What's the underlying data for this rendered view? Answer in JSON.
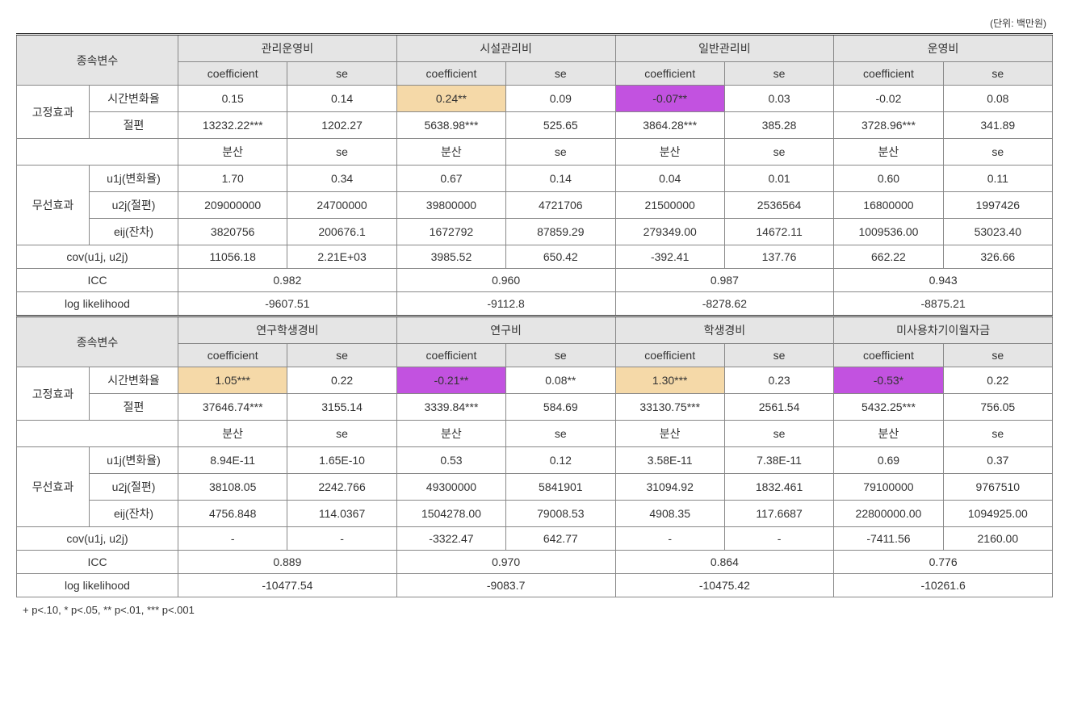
{
  "unit_label": "(단위: 백만원)",
  "footnote": "+ p<.10, * p<.05, ** p<.01, *** p<.001",
  "labels": {
    "dep_var": "종속변수",
    "coef": "coefficient",
    "se": "se",
    "variance": "분산",
    "fixed_effect": "고정효과",
    "random_effect": "무선효과",
    "time_rate": "시간변화율",
    "intercept": "절편",
    "u1j": "u1j(변화율)",
    "u2j": "u2j(절편)",
    "eij": "eij(잔차)",
    "cov": "cov(u1j, u2j)",
    "icc": "ICC",
    "loglik": "log likelihood"
  },
  "highlight_colors": {
    "peach": "#f5d9a8",
    "purple": "#c252e0"
  },
  "block1": {
    "cols": [
      "관리운영비",
      "시설관리비",
      "일반관리비",
      "운영비"
    ],
    "time_rate": [
      {
        "coef": "0.15",
        "se": "0.14"
      },
      {
        "coef": "0.24**",
        "se": "0.09",
        "coef_hl": "peach"
      },
      {
        "coef": "-0.07**",
        "se": "0.03",
        "coef_hl": "purple"
      },
      {
        "coef": "-0.02",
        "se": "0.08"
      }
    ],
    "intercept": [
      {
        "coef": "13232.22***",
        "se": "1202.27"
      },
      {
        "coef": "5638.98***",
        "se": "525.65"
      },
      {
        "coef": "3864.28***",
        "se": "385.28"
      },
      {
        "coef": "3728.96***",
        "se": "341.89"
      }
    ],
    "u1j": [
      {
        "var": "1.70",
        "se": "0.34"
      },
      {
        "var": "0.67",
        "se": "0.14"
      },
      {
        "var": "0.04",
        "se": "0.01"
      },
      {
        "var": "0.60",
        "se": "0.11"
      }
    ],
    "u2j": [
      {
        "var": "209000000",
        "se": "24700000"
      },
      {
        "var": "39800000",
        "se": "4721706"
      },
      {
        "var": "21500000",
        "se": "2536564"
      },
      {
        "var": "16800000",
        "se": "1997426"
      }
    ],
    "eij": [
      {
        "var": "3820756",
        "se": "200676.1"
      },
      {
        "var": "1672792",
        "se": "87859.29"
      },
      {
        "var": "279349.00",
        "se": "14672.11"
      },
      {
        "var": "1009536.00",
        "se": "53023.40"
      }
    ],
    "cov": [
      {
        "v1": "11056.18",
        "v2": "2.21E+03"
      },
      {
        "v1": "3985.52",
        "v2": "650.42"
      },
      {
        "v1": "-392.41",
        "v2": "137.76"
      },
      {
        "v1": "662.22",
        "v2": "326.66"
      }
    ],
    "icc": [
      "0.982",
      "0.960",
      "0.987",
      "0.943"
    ],
    "loglik": [
      "-9607.51",
      "-9112.8",
      "-8278.62",
      "-8875.21"
    ]
  },
  "block2": {
    "cols": [
      "연구학생경비",
      "연구비",
      "학생경비",
      "미사용차기이월자금"
    ],
    "time_rate": [
      {
        "coef": "1.05***",
        "se": "0.22",
        "coef_hl": "peach"
      },
      {
        "coef": "-0.21**",
        "se": "0.08**",
        "coef_hl": "purple"
      },
      {
        "coef": "1.30***",
        "se": "0.23",
        "coef_hl": "peach"
      },
      {
        "coef": "-0.53*",
        "se": "0.22",
        "coef_hl": "purple"
      }
    ],
    "intercept": [
      {
        "coef": "37646.74***",
        "se": "3155.14"
      },
      {
        "coef": "3339.84***",
        "se": "584.69"
      },
      {
        "coef": "33130.75***",
        "se": "2561.54"
      },
      {
        "coef": "5432.25***",
        "se": "756.05"
      }
    ],
    "u1j": [
      {
        "var": "8.94E-11",
        "se": "1.65E-10"
      },
      {
        "var": "0.53",
        "se": "0.12"
      },
      {
        "var": "3.58E-11",
        "se": "7.38E-11"
      },
      {
        "var": "0.69",
        "se": "0.37"
      }
    ],
    "u2j": [
      {
        "var": "38108.05",
        "se": "2242.766"
      },
      {
        "var": "49300000",
        "se": "5841901"
      },
      {
        "var": "31094.92",
        "se": "1832.461"
      },
      {
        "var": "79100000",
        "se": "9767510"
      }
    ],
    "eij": [
      {
        "var": "4756.848",
        "se": "114.0367"
      },
      {
        "var": "1504278.00",
        "se": "79008.53"
      },
      {
        "var": "4908.35",
        "se": "117.6687"
      },
      {
        "var": "22800000.00",
        "se": "1094925.00"
      }
    ],
    "cov": [
      {
        "v1": "-",
        "v2": "-"
      },
      {
        "v1": "-3322.47",
        "v2": "642.77"
      },
      {
        "v1": "-",
        "v2": "-"
      },
      {
        "v1": "-7411.56",
        "v2": "2160.00"
      }
    ],
    "icc": [
      "0.889",
      "0.970",
      "0.864",
      "0.776"
    ],
    "loglik": [
      "-10477.54",
      "-9083.7",
      "-10475.42",
      "-10261.6"
    ]
  }
}
